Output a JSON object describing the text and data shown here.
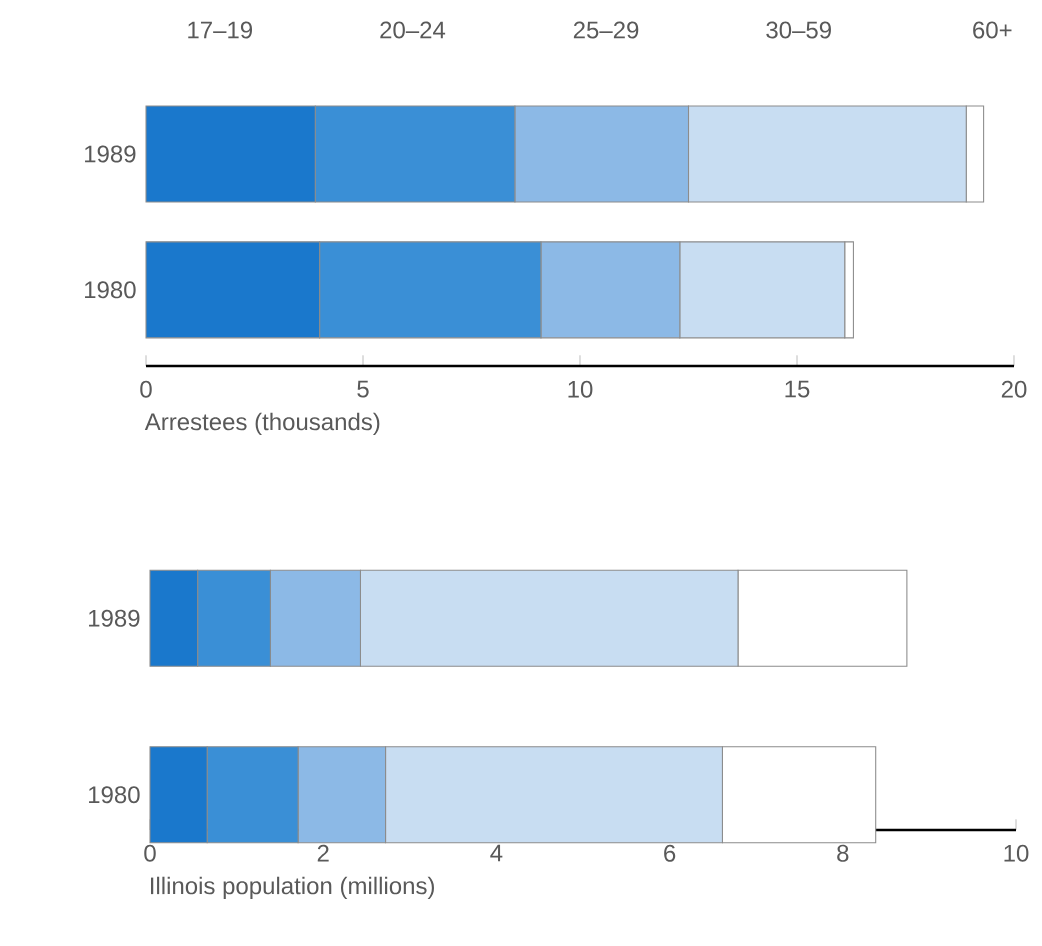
{
  "chart_data": [
    {
      "type": "bar",
      "orientation": "horizontal",
      "stacked": true,
      "legend": "top",
      "categories": [
        "1989",
        "1980"
      ],
      "xlabel": "Arrestees (thousands)",
      "xlim": [
        0,
        20
      ],
      "xticks": [
        0,
        5,
        10,
        15,
        20
      ],
      "series": [
        {
          "name": "17–19",
          "color": "#1a78cc",
          "values": [
            3.9,
            4.0
          ]
        },
        {
          "name": "20–24",
          "color": "#3a8fd6",
          "values": [
            4.6,
            5.1
          ]
        },
        {
          "name": "25–29",
          "color": "#8cb9e6",
          "values": [
            4.0,
            3.2
          ]
        },
        {
          "name": "30–59",
          "color": "#c8ddf2",
          "values": [
            6.4,
            3.8
          ]
        },
        {
          "name": "60+",
          "color": "#ffffff",
          "values": [
            0.4,
            0.2
          ]
        }
      ]
    },
    {
      "type": "bar",
      "orientation": "horizontal",
      "stacked": true,
      "categories": [
        "1989",
        "1980"
      ],
      "xlabel": "Illinois population (millions)",
      "xlim": [
        0,
        10
      ],
      "xticks": [
        0,
        2,
        4,
        6,
        8,
        10
      ],
      "series": [
        {
          "color": "#1a78cc",
          "values": [
            0.55,
            0.66
          ]
        },
        {
          "color": "#3a8fd6",
          "values": [
            0.84,
            1.05
          ]
        },
        {
          "color": "#8cb9e6",
          "values": [
            1.04,
            1.01
          ]
        },
        {
          "color": "#c8ddf2",
          "values": [
            4.36,
            3.89
          ]
        },
        {
          "color": "#ffffff",
          "values": [
            1.95,
            1.77
          ]
        }
      ]
    }
  ]
}
